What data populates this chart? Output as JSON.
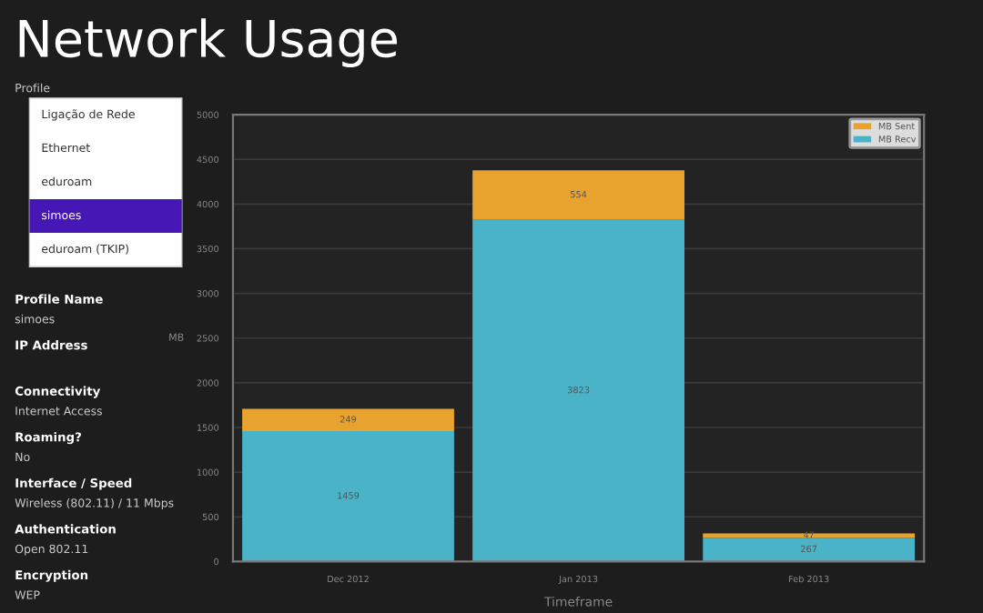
{
  "chart_data": {
    "type": "bar",
    "title": "Network Usage",
    "xlabel": "Timeframe",
    "ylabel": "MB",
    "categories": [
      "Dec 2012",
      "Jan 2013",
      "Feb 2013"
    ],
    "stacked": true,
    "series": [
      {
        "name": "MB Recv",
        "color": "#4bb3c8",
        "values": [
          1459,
          3823,
          267
        ]
      },
      {
        "name": "MB Sent",
        "color": "#e8a32e",
        "values": [
          249,
          554,
          47
        ]
      }
    ],
    "data_labels": true,
    "ylim": [
      0,
      5000
    ],
    "yticks": [
      0,
      500,
      1000,
      1500,
      2000,
      2500,
      3000,
      3500,
      4000,
      4500,
      5000
    ],
    "grid": "y",
    "legend": "top right",
    "annotations": [
      "Profile",
      "Ligação de Rede",
      "Ethernet",
      "eduroam",
      "simoes",
      "eduroam (TKIP)",
      "Profile Name\nsimoes",
      "IP Address",
      "Connectivity\nInternet Access",
      "Roaming?\nNo",
      "Interface / Speed\nWireless (802.11) / 11 Mbps",
      "Authentication\nOpen 802.11",
      "Encryption\nWEP"
    ]
  }
}
